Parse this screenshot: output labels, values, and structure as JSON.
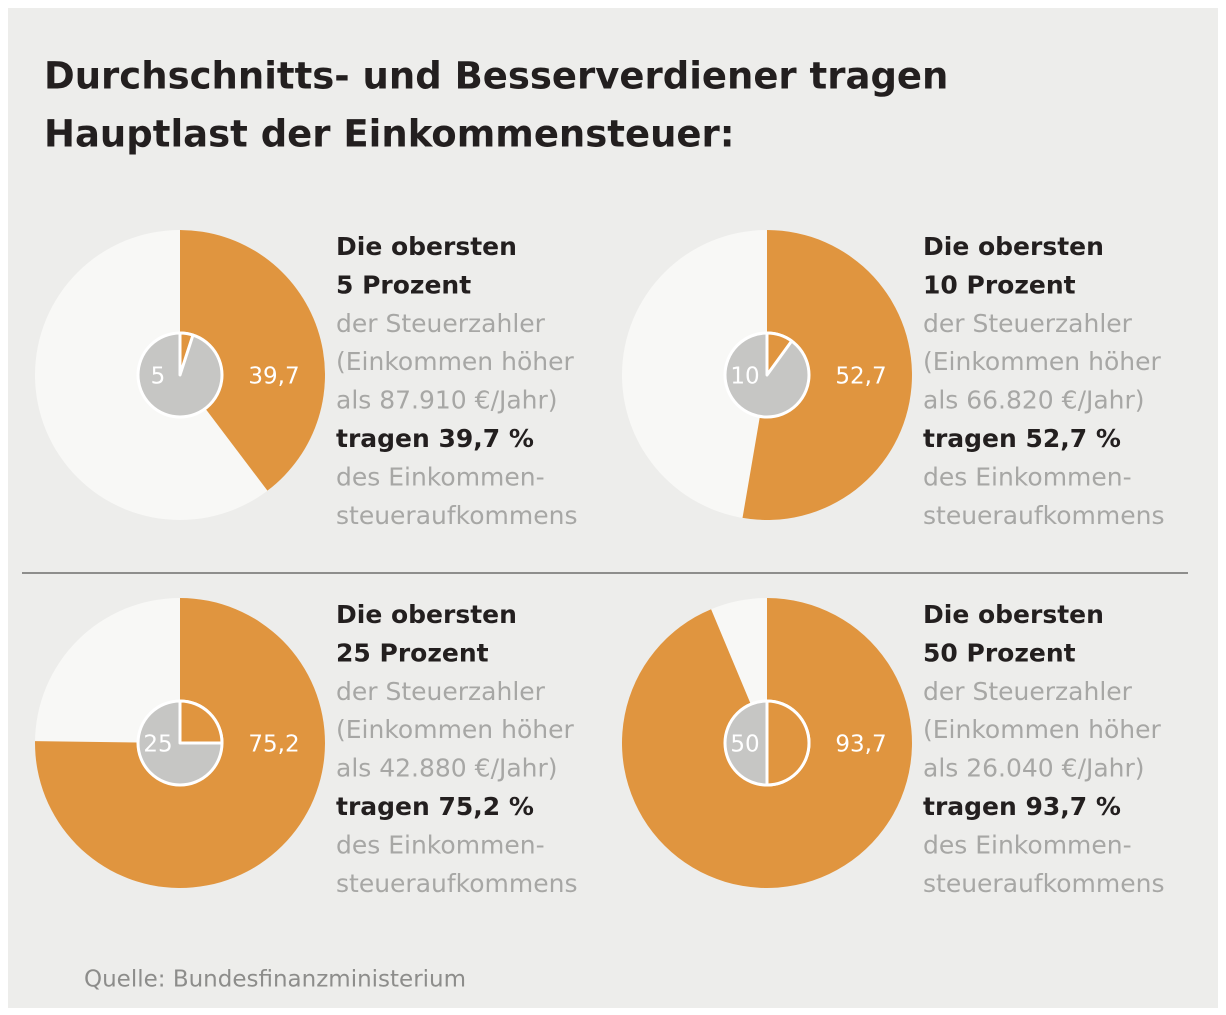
{
  "title": [
    "Durchschnitts- und Besserverdiener tragen",
    "Hauptlast der Einkommensteuer:"
  ],
  "source": "Quelle: Bundesfinanzministerium",
  "chart_data": [
    {
      "type": "pie",
      "series": [
        {
          "values": [
            5
          ],
          "value_labels": [
            "5"
          ],
          "color": "#e0953f"
        },
        {
          "values": [
            39.7
          ],
          "value_labels": [
            "39,7"
          ],
          "color": "#e0953f"
        }
      ],
      "heading": [
        "Die obersten",
        "5 Prozent"
      ],
      "details": [
        "der Steuerzahler",
        "(Einkommen höher",
        "als 87.910 €/Jahr)"
      ],
      "highlight": "tragen 39,7 %",
      "footer": [
        "des Einkommen-",
        "steueraufkommens"
      ]
    },
    {
      "type": "pie",
      "series": [
        {
          "values": [
            10
          ],
          "value_labels": [
            "10"
          ],
          "color": "#e0953f"
        },
        {
          "values": [
            52.7
          ],
          "value_labels": [
            "52,7"
          ],
          "color": "#e0953f"
        }
      ],
      "heading": [
        "Die obersten",
        "10 Prozent"
      ],
      "details": [
        "der Steuerzahler",
        "(Einkommen höher",
        "als 66.820 €/Jahr)"
      ],
      "highlight": "tragen 52,7 %",
      "footer": [
        "des Einkommen-",
        "steueraufkommens"
      ]
    },
    {
      "type": "pie",
      "series": [
        {
          "values": [
            25
          ],
          "value_labels": [
            "25"
          ],
          "color": "#e0953f"
        },
        {
          "values": [
            75.2
          ],
          "value_labels": [
            "75,2"
          ],
          "color": "#e0953f"
        }
      ],
      "heading": [
        "Die obersten",
        "25 Prozent"
      ],
      "details": [
        "der Steuerzahler",
        "(Einkommen höher",
        "als 42.880 €/Jahr)"
      ],
      "highlight": "tragen 75,2 %",
      "footer": [
        "des Einkommen-",
        "steueraufkommens"
      ]
    },
    {
      "type": "pie",
      "series": [
        {
          "values": [
            50
          ],
          "value_labels": [
            "50"
          ],
          "color": "#e0953f"
        },
        {
          "values": [
            93.7
          ],
          "value_labels": [
            "93,7"
          ],
          "color": "#e0953f"
        }
      ],
      "heading": [
        "Die obersten",
        "50 Prozent"
      ],
      "details": [
        "der Steuerzahler",
        "(Einkommen höher",
        "als 26.040 €/Jahr)"
      ],
      "highlight": "tragen 93,7 %",
      "footer": [
        "des Einkommen-",
        "steueraufkommens"
      ]
    }
  ]
}
